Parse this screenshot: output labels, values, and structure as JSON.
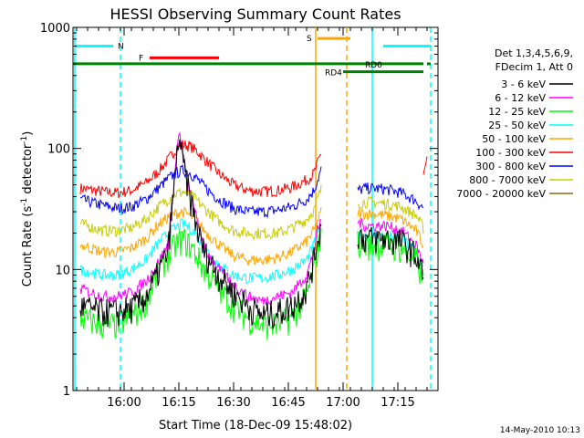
{
  "chart_data": {
    "type": "line",
    "title": "HESSI Observing Summary Count Rates",
    "xlabel": "Start Time (18-Dec-09 15:48:02)",
    "ylabel": "Count Rate (s",
    "ylabel_sup1": "-1",
    "ylabel_mid": " detector",
    "ylabel_sup2": "-1",
    "ylabel_end": ")",
    "y_scale": "log",
    "ylim": [
      1,
      1000
    ],
    "y_ticks": [
      {
        "value": 1,
        "label": "1"
      },
      {
        "value": 10,
        "label": "10"
      },
      {
        "value": 100,
        "label": "100"
      },
      {
        "value": 1000,
        "label": "1000"
      }
    ],
    "xlim_minutes": [
      -2,
      98
    ],
    "x_ticks": [
      {
        "value": 12,
        "label": "16:00"
      },
      {
        "value": 27,
        "label": "16:15"
      },
      {
        "value": 42,
        "label": "16:30"
      },
      {
        "value": 57,
        "label": "16:45"
      },
      {
        "value": 72,
        "label": "17:00"
      },
      {
        "value": 87,
        "label": "17:15"
      }
    ],
    "footer_date": "14-May-2010 10:13",
    "legend_header": [
      "Det 1,3,4,5,6,9,",
      "FDecim 1, Att 0"
    ],
    "series": [
      {
        "name": "3 - 6 keV",
        "color": "#000000",
        "x": [
          0,
          6,
          10,
          14,
          18,
          21,
          24,
          26,
          27,
          28,
          30,
          32,
          34,
          38,
          42,
          46,
          50,
          54,
          58,
          62,
          64,
          65,
          66
        ],
        "y": [
          5,
          4.5,
          4.5,
          4.8,
          6,
          9,
          14,
          60,
          130,
          80,
          40,
          22,
          14,
          9,
          6.5,
          5,
          4.2,
          4.5,
          5,
          7,
          12,
          18,
          22
        ],
        "x2": [
          76,
          78,
          80,
          84,
          88,
          92,
          94
        ],
        "y2": [
          20,
          18,
          18,
          18,
          17,
          13,
          9
        ]
      },
      {
        "name": "6 - 12 keV",
        "color": "#ff00ff",
        "x": [
          0,
          6,
          10,
          14,
          18,
          21,
          24,
          26,
          27,
          28,
          30,
          32,
          34,
          38,
          42,
          46,
          50,
          54,
          58,
          62,
          64,
          65,
          66
        ],
        "y": [
          7,
          6,
          6,
          6.5,
          8,
          11,
          16,
          65,
          140,
          90,
          45,
          25,
          15,
          10,
          7.5,
          6,
          5.5,
          6,
          6.5,
          9,
          14,
          21,
          25
        ],
        "x2": [
          76,
          78,
          80,
          84,
          88,
          92,
          94
        ],
        "y2": [
          25,
          23,
          23,
          23,
          21,
          16,
          11
        ]
      },
      {
        "name": "12 - 25 keV",
        "color": "#00ff00",
        "x": [
          0,
          6,
          10,
          14,
          18,
          21,
          24,
          26,
          28,
          30,
          32,
          34,
          38,
          42,
          46,
          50,
          54,
          58,
          62,
          64,
          65,
          66
        ],
        "y": [
          4,
          3.5,
          3.5,
          4,
          5.5,
          9,
          13,
          16,
          18,
          16,
          13,
          10,
          7,
          5,
          4,
          3.5,
          3.5,
          4,
          6,
          10,
          15,
          20
        ],
        "x2": [
          76,
          78,
          80,
          84,
          88,
          92,
          94
        ],
        "y2": [
          17,
          16,
          16,
          16,
          15,
          12,
          8
        ]
      },
      {
        "name": "25 - 50 keV",
        "color": "#00ffff",
        "x": [
          0,
          6,
          10,
          14,
          18,
          21,
          24,
          26,
          28,
          30,
          32,
          34,
          38,
          42,
          46,
          50,
          54,
          58,
          62,
          64,
          65,
          66
        ],
        "y": [
          10,
          9,
          9,
          10,
          12,
          16,
          20,
          22,
          24,
          22,
          19,
          15,
          11,
          9,
          8.5,
          8.5,
          9,
          10,
          12,
          16,
          20,
          24
        ],
        "x2": [
          76,
          78,
          80,
          84,
          88,
          92,
          94
        ],
        "y2": [
          20,
          19,
          19,
          19,
          18,
          14,
          10
        ]
      },
      {
        "name": "50 - 100 keV",
        "color": "#ffa500",
        "x": [
          0,
          6,
          10,
          14,
          18,
          21,
          24,
          26,
          28,
          30,
          32,
          34,
          38,
          42,
          46,
          50,
          54,
          58,
          62,
          64,
          65,
          66
        ],
        "y": [
          16,
          14,
          14,
          15,
          18,
          23,
          27,
          29,
          30,
          28,
          25,
          21,
          16,
          13,
          12,
          12,
          12.5,
          14,
          17,
          21,
          25,
          30
        ],
        "x2": [
          76,
          78,
          80,
          84,
          88,
          92,
          94
        ],
        "y2": [
          29,
          29,
          29,
          28,
          26,
          21,
          16
        ]
      },
      {
        "name": "100 - 300 keV",
        "color": "#ff0000",
        "x": [
          0,
          6,
          10,
          14,
          18,
          21,
          24,
          26,
          28,
          30,
          32,
          34,
          38,
          42,
          46,
          50,
          54,
          58,
          62,
          64,
          65,
          66
        ],
        "y": [
          47,
          44,
          43,
          45,
          52,
          63,
          80,
          98,
          108,
          105,
          95,
          82,
          62,
          50,
          45,
          44,
          45,
          48,
          55,
          62,
          75,
          92
        ],
        "x2": [
          94,
          95
        ],
        "y2": [
          62,
          82
        ]
      },
      {
        "name": "300 - 800 keV",
        "color": "#0000ff",
        "x": [
          0,
          6,
          10,
          14,
          18,
          21,
          24,
          26,
          28,
          30,
          32,
          34,
          38,
          42,
          46,
          50,
          54,
          58,
          62,
          64,
          65,
          66
        ],
        "y": [
          38,
          34,
          32,
          33,
          38,
          46,
          56,
          62,
          66,
          63,
          56,
          48,
          38,
          32,
          30,
          30,
          31,
          33,
          38,
          45,
          55,
          67
        ],
        "x2": [
          76,
          78,
          80,
          84,
          88,
          92,
          94
        ],
        "y2": [
          45,
          47,
          47,
          46,
          43,
          37,
          32
        ]
      },
      {
        "name": "800 - 7000 keV",
        "color": "#cccc00",
        "x": [
          0,
          6,
          10,
          14,
          18,
          21,
          24,
          26,
          28,
          30,
          32,
          34,
          38,
          42,
          46,
          50,
          54,
          58,
          62,
          64,
          65,
          66
        ],
        "y": [
          24,
          21,
          21,
          22,
          26,
          32,
          38,
          42,
          44,
          42,
          37,
          32,
          25,
          21,
          20,
          20,
          20,
          22,
          26,
          31,
          38,
          46
        ],
        "x2": [
          76,
          78,
          80,
          84,
          88,
          92,
          94
        ],
        "y2": [
          35,
          36,
          36,
          35,
          33,
          28,
          22
        ]
      },
      {
        "name": "7000 - 20000 keV",
        "color": "#8b6914",
        "x": [],
        "y": []
      }
    ],
    "flag_bars": [
      {
        "label": "N",
        "color": "#00ffff",
        "segments": [
          [
            -2,
            9
          ],
          [
            83,
            96
          ]
        ],
        "level": 700
      },
      {
        "label": "F",
        "color": "#ff0000",
        "segments": [
          [
            19,
            38
          ]
        ],
        "level": 560
      },
      {
        "label": "S",
        "color": "#ffa500",
        "segments": [
          [
            65,
            74
          ]
        ],
        "level": 810
      },
      {
        "label": "RD0",
        "color": "#008000",
        "segments": [
          [
            -2,
            94
          ],
          [
            95,
            96
          ]
        ],
        "level": 500
      },
      {
        "label": "RD4",
        "color": "#008000",
        "segments": [
          [
            72,
            94
          ]
        ],
        "level": 430
      }
    ],
    "vertical_markers": [
      {
        "x": -1.5,
        "color": "#00ffff",
        "dashed": false
      },
      {
        "x": 11,
        "color": "#00ffff",
        "dashed": true
      },
      {
        "x": 64.5,
        "color": "#ffa500",
        "dashed": false
      },
      {
        "x": 73,
        "color": "#ffa500",
        "dashed": true
      },
      {
        "x": 80,
        "color": "#00ffff",
        "dashed": false
      },
      {
        "x": 96,
        "color": "#00ffff",
        "dashed": true
      }
    ]
  }
}
